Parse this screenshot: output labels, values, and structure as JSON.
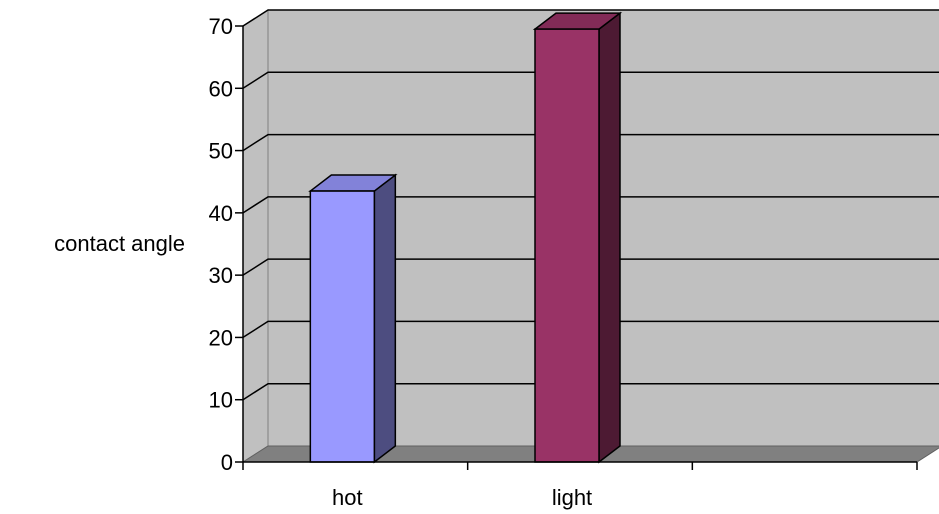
{
  "chart_data": {
    "type": "bar",
    "style": "3d-column",
    "categories": [
      "hot",
      "light",
      ""
    ],
    "series": [
      {
        "values": [
          43.5,
          69.5,
          null
        ],
        "colors": [
          "#9999ff",
          "#993366",
          null
        ]
      }
    ],
    "ylabel": "contact angle",
    "xlabel": "",
    "ylim": [
      0,
      70
    ],
    "yticks": [
      0,
      10,
      20,
      30,
      40,
      50,
      60,
      70
    ],
    "grid": true,
    "legend": "none",
    "plot_background": "#c0c0c0",
    "floor_color": "#808080"
  }
}
